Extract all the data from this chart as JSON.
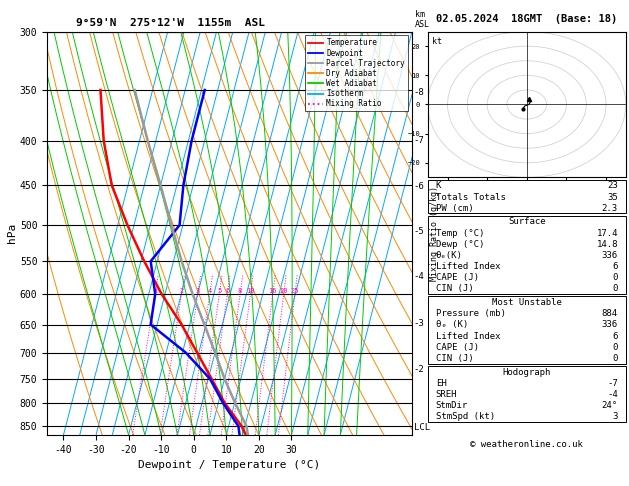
{
  "title_left": "9°59'N  275°12'W  1155m  ASL",
  "title_right": "02.05.2024  18GMT  (Base: 18)",
  "xlabel": "Dewpoint / Temperature (°C)",
  "pressure_levels": [
    300,
    350,
    400,
    450,
    500,
    550,
    600,
    650,
    700,
    750,
    800,
    850
  ],
  "pressure_min": 300,
  "pressure_max": 870,
  "temp_min": -45,
  "temp_max": 35,
  "skew_factor": 32,
  "isotherm_temps": [
    -40,
    -35,
    -30,
    -25,
    -20,
    -15,
    -10,
    -5,
    0,
    5,
    10,
    15,
    20,
    25,
    30,
    35,
    40,
    45
  ],
  "isotherm_color": "#00aaff",
  "dry_adiabat_color": "#ff8800",
  "wet_adiabat_color": "#00cc00",
  "mixing_ratio_color": "#ff00cc",
  "mixing_ratio_values": [
    1,
    2,
    3,
    4,
    5,
    6,
    8,
    10,
    16,
    20,
    25
  ],
  "temp_profile_temp": [
    17.4,
    14.0,
    7.0,
    1.0,
    -5.5,
    -12.5,
    -21.0,
    -29.0,
    -37.0,
    -45.0,
    -51.0,
    -56.0
  ],
  "temp_profile_pres": [
    884,
    850,
    800,
    750,
    700,
    650,
    600,
    550,
    500,
    450,
    400,
    350
  ],
  "dewp_profile_temp": [
    14.8,
    13.0,
    6.5,
    0.5,
    -9.0,
    -22.0,
    -23.0,
    -27.0,
    -21.0,
    -23.0,
    -24.0,
    -24.0
  ],
  "dewp_profile_pres": [
    884,
    850,
    800,
    750,
    700,
    650,
    600,
    550,
    500,
    450,
    400,
    350
  ],
  "parcel_profile_temp": [
    17.4,
    15.5,
    10.2,
    5.0,
    0.0,
    -5.5,
    -11.5,
    -17.5,
    -23.5,
    -30.0,
    -37.5,
    -45.5
  ],
  "parcel_profile_pres": [
    884,
    850,
    800,
    750,
    700,
    650,
    600,
    550,
    500,
    450,
    400,
    350
  ],
  "temp_color": "#ff0000",
  "dewp_color": "#0000ff",
  "parcel_color": "#999999",
  "lcl_pressure": 852,
  "km_ticks": [
    8,
    7,
    6,
    5,
    4,
    3,
    2
  ],
  "km_pressures": [
    352,
    400,
    452,
    508,
    572,
    648,
    732
  ],
  "bg_color": "#ffffff",
  "info_K": 23,
  "info_TT": 35,
  "info_PW": "2.3",
  "info_surf_temp": "17.4",
  "info_surf_dewp": "14.8",
  "info_surf_theta": 336,
  "info_surf_li": 6,
  "info_surf_cape": 0,
  "info_surf_cin": 0,
  "info_mu_pres": 884,
  "info_mu_theta": 336,
  "info_mu_li": 6,
  "info_mu_cape": 0,
  "info_mu_cin": 0,
  "info_EH": -7,
  "info_SREH": -4,
  "info_StmDir": "24°",
  "info_StmSpd": 3,
  "copyright": "© weatheronline.co.uk",
  "legend_items": [
    {
      "label": "Temperature",
      "color": "#ff0000",
      "ls": "-"
    },
    {
      "label": "Dewpoint",
      "color": "#0000ff",
      "ls": "-"
    },
    {
      "label": "Parcel Trajectory",
      "color": "#999999",
      "ls": "-"
    },
    {
      "label": "Dry Adiabat",
      "color": "#ff8800",
      "ls": "-"
    },
    {
      "label": "Wet Adiabat",
      "color": "#00cc00",
      "ls": "-"
    },
    {
      "label": "Isotherm",
      "color": "#00aaff",
      "ls": "-"
    },
    {
      "label": "Mixing Ratio",
      "color": "#ff00cc",
      "ls": ":"
    }
  ]
}
